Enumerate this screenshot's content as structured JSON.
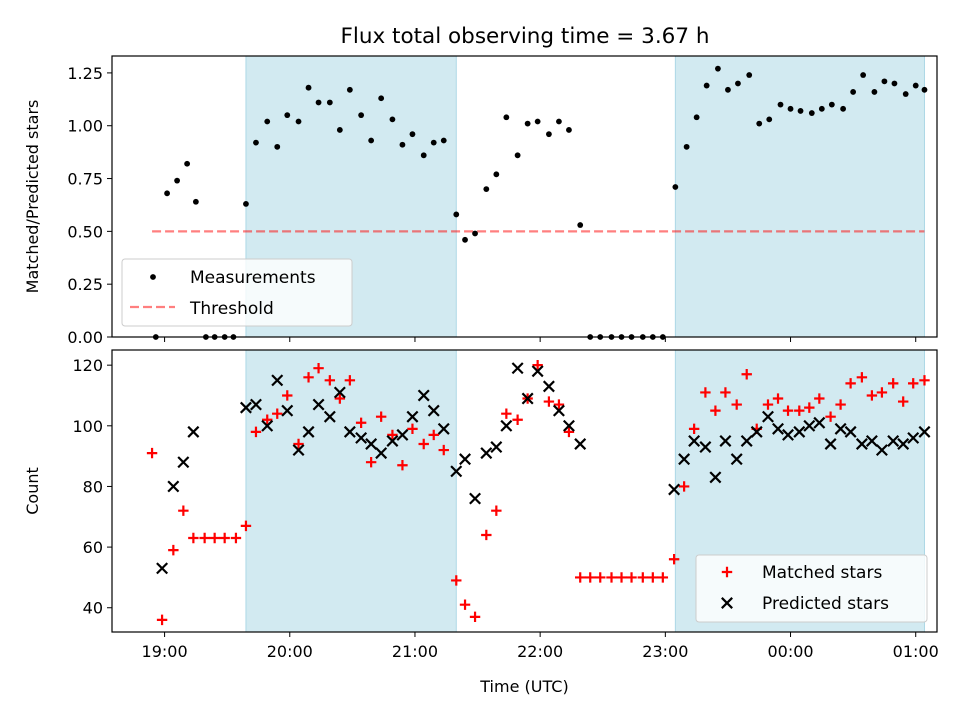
{
  "title": "Flux total observing time = 3.67 h",
  "colors": {
    "shade": "#add8e6",
    "measurement": "#000000",
    "threshold": "#ff0000",
    "matched": "#ff0000",
    "predicted": "#000000"
  },
  "chart_data": [
    {
      "type": "scatter",
      "panel": "top",
      "xlabel": "",
      "ylabel": "Matched/Predicted stars",
      "ylim": [
        0,
        1.33
      ],
      "yticks": [
        "0.00",
        "0.25",
        "0.50",
        "0.75",
        "1.00",
        "1.25"
      ],
      "xlim_hours": [
        18.58,
        25.17
      ],
      "legend_position": "lower-left",
      "shaded_spans": [
        [
          19.65,
          21.33
        ],
        [
          23.08,
          25.07
        ]
      ],
      "series": [
        {
          "name": "Measurements",
          "marker": "dot",
          "x": [
            18.93,
            19.02,
            19.1,
            19.18,
            19.25,
            19.33,
            19.4,
            19.48,
            19.55,
            19.65,
            19.73,
            19.82,
            19.9,
            19.98,
            20.07,
            20.15,
            20.23,
            20.32,
            20.4,
            20.48,
            20.57,
            20.65,
            20.73,
            20.82,
            20.9,
            20.98,
            21.07,
            21.15,
            21.23,
            21.33,
            21.4,
            21.48,
            21.57,
            21.65,
            21.73,
            21.82,
            21.9,
            21.98,
            22.07,
            22.15,
            22.23,
            22.32,
            22.4,
            22.48,
            22.57,
            22.65,
            22.73,
            22.82,
            22.9,
            22.98,
            23.08,
            23.17,
            23.25,
            23.33,
            23.42,
            23.5,
            23.58,
            23.67,
            23.75,
            23.83,
            23.92,
            24.0,
            24.08,
            24.17,
            24.25,
            24.33,
            24.42,
            24.5,
            24.58,
            24.67,
            24.75,
            24.83,
            24.92,
            25.0,
            25.07
          ],
          "y": [
            0.0,
            0.68,
            0.74,
            0.82,
            0.64,
            0.0,
            0.0,
            0.0,
            0.0,
            0.63,
            0.92,
            1.02,
            0.9,
            1.05,
            1.02,
            1.18,
            1.11,
            1.11,
            0.98,
            1.17,
            1.05,
            0.93,
            1.13,
            1.03,
            0.91,
            0.96,
            0.86,
            0.92,
            0.93,
            0.58,
            0.46,
            0.49,
            0.7,
            0.77,
            1.04,
            0.86,
            1.01,
            1.02,
            0.96,
            1.02,
            0.98,
            0.53,
            0.0,
            0.0,
            0.0,
            0.0,
            0.0,
            0.0,
            0.0,
            0.0,
            0.71,
            0.9,
            1.04,
            1.19,
            1.27,
            1.17,
            1.2,
            1.24,
            1.01,
            1.03,
            1.1,
            1.08,
            1.07,
            1.06,
            1.08,
            1.1,
            1.08,
            1.16,
            1.24,
            1.16,
            1.21,
            1.2,
            1.15,
            1.19,
            1.17
          ]
        },
        {
          "name": "Threshold",
          "marker": "dashed-line",
          "x": [
            18.9,
            25.07
          ],
          "y": [
            0.5,
            0.5
          ]
        }
      ]
    },
    {
      "type": "scatter",
      "panel": "bottom",
      "xlabel": "Time (UTC)",
      "ylabel": "Count",
      "ylim": [
        32,
        125
      ],
      "yticks": [
        "40",
        "60",
        "80",
        "100",
        "120"
      ],
      "xlim_hours": [
        18.58,
        25.17
      ],
      "xticks": [
        "19:00",
        "20:00",
        "21:00",
        "22:00",
        "23:00",
        "00:00",
        "01:00"
      ],
      "legend_position": "lower-right",
      "shaded_spans": [
        [
          19.65,
          21.33
        ],
        [
          23.08,
          25.07
        ]
      ],
      "series": [
        {
          "name": "Matched stars",
          "marker": "plus",
          "x": [
            18.9,
            18.98,
            19.07,
            19.15,
            19.23,
            19.32,
            19.4,
            19.48,
            19.57,
            19.65,
            19.73,
            19.82,
            19.9,
            19.98,
            20.07,
            20.15,
            20.23,
            20.32,
            20.4,
            20.48,
            20.57,
            20.65,
            20.73,
            20.82,
            20.9,
            20.98,
            21.07,
            21.15,
            21.23,
            21.33,
            21.4,
            21.48,
            21.57,
            21.65,
            21.73,
            21.82,
            21.9,
            21.98,
            22.07,
            22.15,
            22.23,
            22.32,
            22.4,
            22.48,
            22.57,
            22.65,
            22.73,
            22.82,
            22.9,
            22.98,
            23.07,
            23.15,
            23.23,
            23.32,
            23.4,
            23.48,
            23.57,
            23.65,
            23.73,
            23.82,
            23.9,
            23.98,
            24.07,
            24.15,
            24.23,
            24.32,
            24.4,
            24.48,
            24.57,
            24.65,
            24.73,
            24.82,
            24.9,
            24.98,
            25.07
          ],
          "y": [
            91,
            36,
            59,
            72,
            63,
            63,
            63,
            63,
            63,
            67,
            98,
            102,
            104,
            110,
            94,
            116,
            119,
            115,
            109,
            115,
            101,
            88,
            103,
            97,
            87,
            99,
            94,
            97,
            92,
            49,
            41,
            37,
            64,
            72,
            104,
            102,
            109,
            120,
            108,
            107,
            98,
            50,
            50,
            50,
            50,
            50,
            50,
            50,
            50,
            50,
            56,
            80,
            99,
            111,
            105,
            111,
            107,
            117,
            99,
            107,
            109,
            105,
            105,
            106,
            109,
            103,
            107,
            114,
            116,
            110,
            111,
            114,
            108,
            114,
            115
          ]
        },
        {
          "name": "Predicted stars",
          "marker": "x",
          "x": [
            18.98,
            19.07,
            19.15,
            19.23,
            19.65,
            19.73,
            19.82,
            19.9,
            19.98,
            20.07,
            20.15,
            20.23,
            20.32,
            20.4,
            20.48,
            20.57,
            20.65,
            20.73,
            20.82,
            20.9,
            20.98,
            21.07,
            21.15,
            21.23,
            21.33,
            21.4,
            21.48,
            21.57,
            21.65,
            21.73,
            21.82,
            21.9,
            21.98,
            22.07,
            22.15,
            22.23,
            22.32,
            23.07,
            23.15,
            23.23,
            23.32,
            23.4,
            23.48,
            23.57,
            23.65,
            23.73,
            23.82,
            23.9,
            23.98,
            24.07,
            24.15,
            24.23,
            24.32,
            24.4,
            24.48,
            24.57,
            24.65,
            24.73,
            24.82,
            24.9,
            24.98,
            25.07
          ],
          "y": [
            53,
            80,
            88,
            98,
            106,
            107,
            100,
            115,
            105,
            92,
            98,
            107,
            103,
            111,
            98,
            96,
            94,
            91,
            95,
            97,
            103,
            110,
            105,
            99,
            85,
            89,
            76,
            91,
            93,
            100,
            119,
            109,
            118,
            113,
            105,
            100,
            94,
            79,
            89,
            95,
            93,
            83,
            95,
            89,
            95,
            98,
            103,
            99,
            97,
            98,
            100,
            101,
            94,
            99,
            98,
            94,
            95,
            92,
            95,
            94,
            96,
            98
          ]
        }
      ]
    }
  ]
}
